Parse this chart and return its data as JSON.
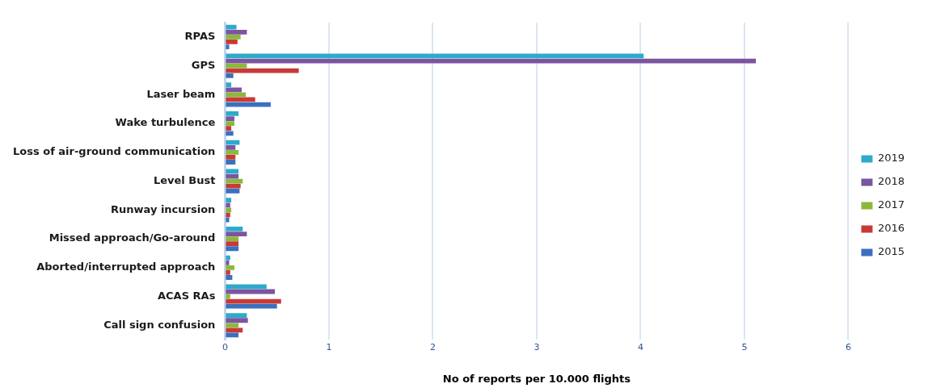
{
  "chart_data": {
    "type": "bar",
    "orientation": "horizontal",
    "xlabel": "No of reports per 10.000 flights",
    "categories": [
      "RPAS",
      "GPS",
      "Laser beam",
      "Wake turbulence",
      "Loss of air-ground communication",
      "Level Bust",
      "Runway incursion",
      "Missed approach/Go-around",
      "Aborted/interrupted approach",
      "ACAS RAs",
      "Call sign confusion"
    ],
    "series": [
      {
        "name": "2019",
        "color": "#2eaacb",
        "values": [
          0.11,
          4.03,
          0.06,
          0.13,
          0.14,
          0.13,
          0.06,
          0.17,
          0.05,
          0.4,
          0.21
        ]
      },
      {
        "name": "2018",
        "color": "#7b55a0",
        "values": [
          0.21,
          5.11,
          0.16,
          0.09,
          0.1,
          0.13,
          0.05,
          0.21,
          0.04,
          0.48,
          0.22
        ]
      },
      {
        "name": "2017",
        "color": "#8cb83c",
        "values": [
          0.15,
          0.21,
          0.2,
          0.09,
          0.13,
          0.17,
          0.06,
          0.13,
          0.09,
          0.05,
          0.13
        ]
      },
      {
        "name": "2016",
        "color": "#c83a36",
        "values": [
          0.12,
          0.71,
          0.29,
          0.06,
          0.1,
          0.15,
          0.05,
          0.13,
          0.05,
          0.54,
          0.17
        ]
      },
      {
        "name": "2015",
        "color": "#3a70c0",
        "values": [
          0.04,
          0.08,
          0.44,
          0.08,
          0.1,
          0.14,
          0.04,
          0.13,
          0.07,
          0.5,
          0.13
        ]
      }
    ],
    "xlim": [
      0,
      6
    ],
    "xticks": [
      0,
      1,
      2,
      3,
      4,
      5,
      6
    ],
    "grid": "x",
    "legend": "right"
  }
}
